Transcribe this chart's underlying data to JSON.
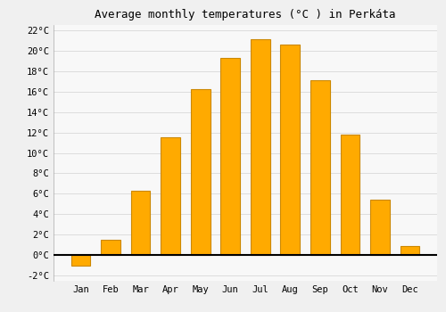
{
  "months": [
    "Jan",
    "Feb",
    "Mar",
    "Apr",
    "May",
    "Jun",
    "Jul",
    "Aug",
    "Sep",
    "Oct",
    "Nov",
    "Dec"
  ],
  "values": [
    -1.0,
    1.5,
    6.3,
    11.5,
    16.2,
    19.3,
    21.1,
    20.6,
    17.1,
    11.8,
    5.4,
    0.9
  ],
  "bar_color": "#FFAA00",
  "bar_edge_color": "#CC8800",
  "title": "Average monthly temperatures (°C ) in Perkáta",
  "ylim": [
    -2.5,
    22.5
  ],
  "yticks": [
    -2,
    0,
    2,
    4,
    6,
    8,
    10,
    12,
    14,
    16,
    18,
    20,
    22
  ],
  "grid_color": "#dddddd",
  "background_color": "#f0f0f0",
  "plot_bg_color": "#f8f8f8",
  "title_fontsize": 9,
  "tick_fontsize": 7.5,
  "bar_width": 0.65
}
